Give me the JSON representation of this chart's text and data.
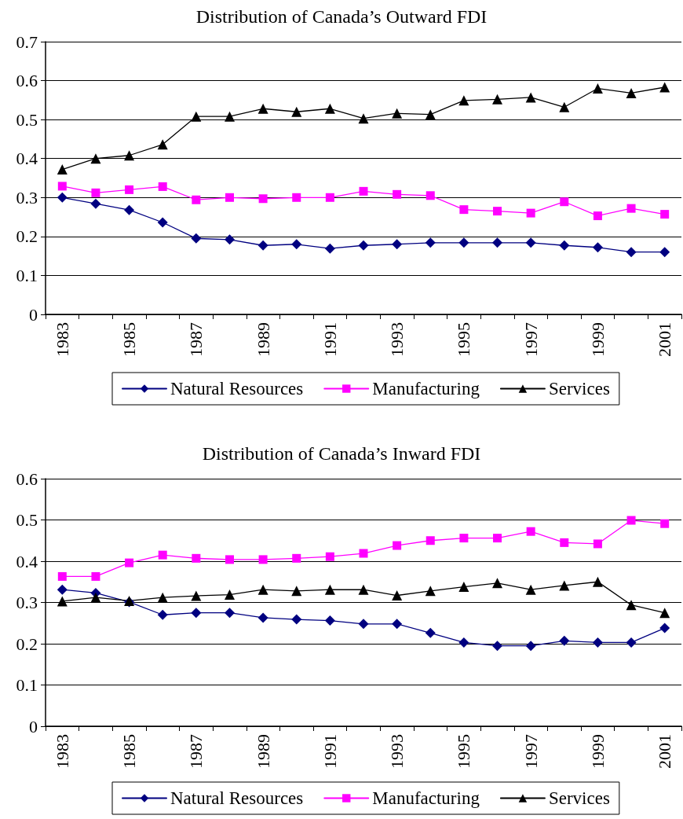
{
  "chart_data": [
    {
      "type": "line",
      "title": "Distribution of Canada’s Outward FDI",
      "categories": [
        "1983",
        null,
        "1985",
        null,
        "1987",
        null,
        "1989",
        null,
        "1991",
        null,
        "1993",
        null,
        "1995",
        null,
        "1997",
        null,
        "1999",
        null,
        "2001"
      ],
      "series": [
        {
          "name": "Natural Resources",
          "color": "#000080",
          "marker": "diamond",
          "values": [
            0.3,
            0.284,
            0.268,
            0.236,
            0.195,
            0.192,
            0.177,
            0.18,
            0.169,
            0.177,
            0.18,
            0.184,
            0.184,
            0.184,
            0.184,
            0.177,
            0.172,
            0.16,
            0.16
          ]
        },
        {
          "name": "Manufacturing",
          "color": "#ff00ff",
          "marker": "square",
          "values": [
            0.329,
            0.312,
            0.32,
            0.328,
            0.294,
            0.3,
            0.297,
            0.3,
            0.3,
            0.316,
            0.308,
            0.305,
            0.269,
            0.265,
            0.26,
            0.289,
            0.253,
            0.272,
            0.257
          ]
        },
        {
          "name": "Services",
          "color": "#000000",
          "marker": "triangle",
          "values": [
            0.372,
            0.4,
            0.408,
            0.436,
            0.508,
            0.508,
            0.528,
            0.52,
            0.528,
            0.503,
            0.516,
            0.513,
            0.549,
            0.552,
            0.557,
            0.532,
            0.58,
            0.568,
            0.583
          ]
        }
      ],
      "ylim": [
        0,
        0.7
      ],
      "yticks": [
        0,
        0.1,
        0.2,
        0.3,
        0.4,
        0.5,
        0.6,
        0.7
      ],
      "grid": "y",
      "legend": "bottom"
    },
    {
      "type": "line",
      "title": "Distribution of Canada’s Inward FDI",
      "categories": [
        "1983",
        null,
        "1985",
        null,
        "1987",
        null,
        "1989",
        null,
        "1991",
        null,
        "1993",
        null,
        "1995",
        null,
        "1997",
        null,
        "1999",
        null,
        "2001"
      ],
      "series": [
        {
          "name": "Natural Resources",
          "color": "#000080",
          "marker": "diamond",
          "values": [
            0.331,
            0.323,
            0.301,
            0.27,
            0.275,
            0.275,
            0.263,
            0.259,
            0.256,
            0.248,
            0.248,
            0.226,
            0.203,
            0.195,
            0.195,
            0.207,
            0.203,
            0.203,
            0.238
          ]
        },
        {
          "name": "Manufacturing",
          "color": "#ff00ff",
          "marker": "square",
          "values": [
            0.363,
            0.363,
            0.396,
            0.415,
            0.407,
            0.404,
            0.404,
            0.407,
            0.411,
            0.419,
            0.438,
            0.45,
            0.456,
            0.456,
            0.472,
            0.445,
            0.442,
            0.499,
            0.491
          ]
        },
        {
          "name": "Services",
          "color": "#000000",
          "marker": "triangle",
          "values": [
            0.303,
            0.312,
            0.304,
            0.312,
            0.316,
            0.319,
            0.331,
            0.328,
            0.331,
            0.331,
            0.317,
            0.328,
            0.338,
            0.347,
            0.331,
            0.341,
            0.35,
            0.294,
            0.275
          ]
        }
      ],
      "ylim": [
        0,
        0.6
      ],
      "yticks": [
        0,
        0.1,
        0.2,
        0.3,
        0.4,
        0.5,
        0.6
      ],
      "grid": "y",
      "legend": "bottom"
    }
  ]
}
